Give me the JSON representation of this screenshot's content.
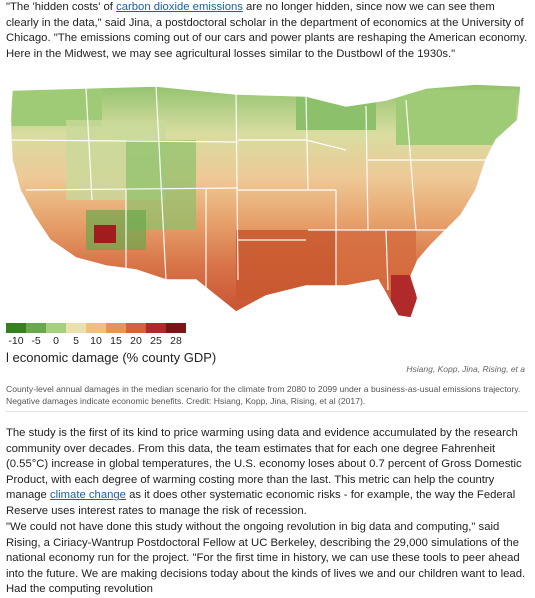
{
  "article": {
    "p1_a": "\"The 'hidden costs' of ",
    "p1_link": "carbon dioxide emissions",
    "p1_b": " are no longer hidden, since now we can see them clearly in the data,\" said Jina, a postdoctoral scholar in the department of economics at the University of Chicago. \"The emissions coming out of our cars and power plants are reshaping the American economy. Here in the Midwest, we may see agricultural losses similar to the Dustbowl of the 1930s.\"",
    "p2_a": "The study is the first of its kind to price warming using data and evidence accumulated by the research community over decades. From this data, the team estimates that for each one degree Fahrenheit (0.55°C) increase in global temperatures, the U.S. economy loses about 0.7 percent of Gross Domestic Product, with each degree of warming costing more than the last. This metric can help the country manage ",
    "p2_link": "climate change",
    "p2_b": " as it does other systematic economic risks - for example, the way the Federal Reserve uses interest rates to manage the risk of recession.",
    "p3": "\"We could not have done this study without the ongoing revolution in big data and computing,\" said Rising, a Ciriacy-Wantrup Postdoctoral Fellow at UC Berkeley, describing the 29,000 simulations of the national economy run for the project. \"For the first time in history, we can use these tools to peer ahead into the future. We are making decisions today about the kinds of lives we and our children want to lead. Had the computing revolution"
  },
  "figure": {
    "legend_title": "l economic damage (% county GDP)",
    "legend_ticks": [
      "-10",
      "-5",
      "0",
      "5",
      "10",
      "15",
      "20",
      "25",
      "28"
    ],
    "legend_colors": [
      "#35801f",
      "#6aa84f",
      "#a6cf7e",
      "#e9e2ae",
      "#f1be82",
      "#e6955a",
      "#d4603d",
      "#b12a2a",
      "#7a1416"
    ],
    "image_credit": "Hsiang, Kopp, Jina, Rising, et a",
    "caption": "County-level annual damages in the median scenario for the climate from 2080 to 2099 under a business-as-usual emissions trajectory. Negative damages indicate economic benefits. Credit: Hsiang, Kopp, Jina, Rising, et al (2017)."
  }
}
